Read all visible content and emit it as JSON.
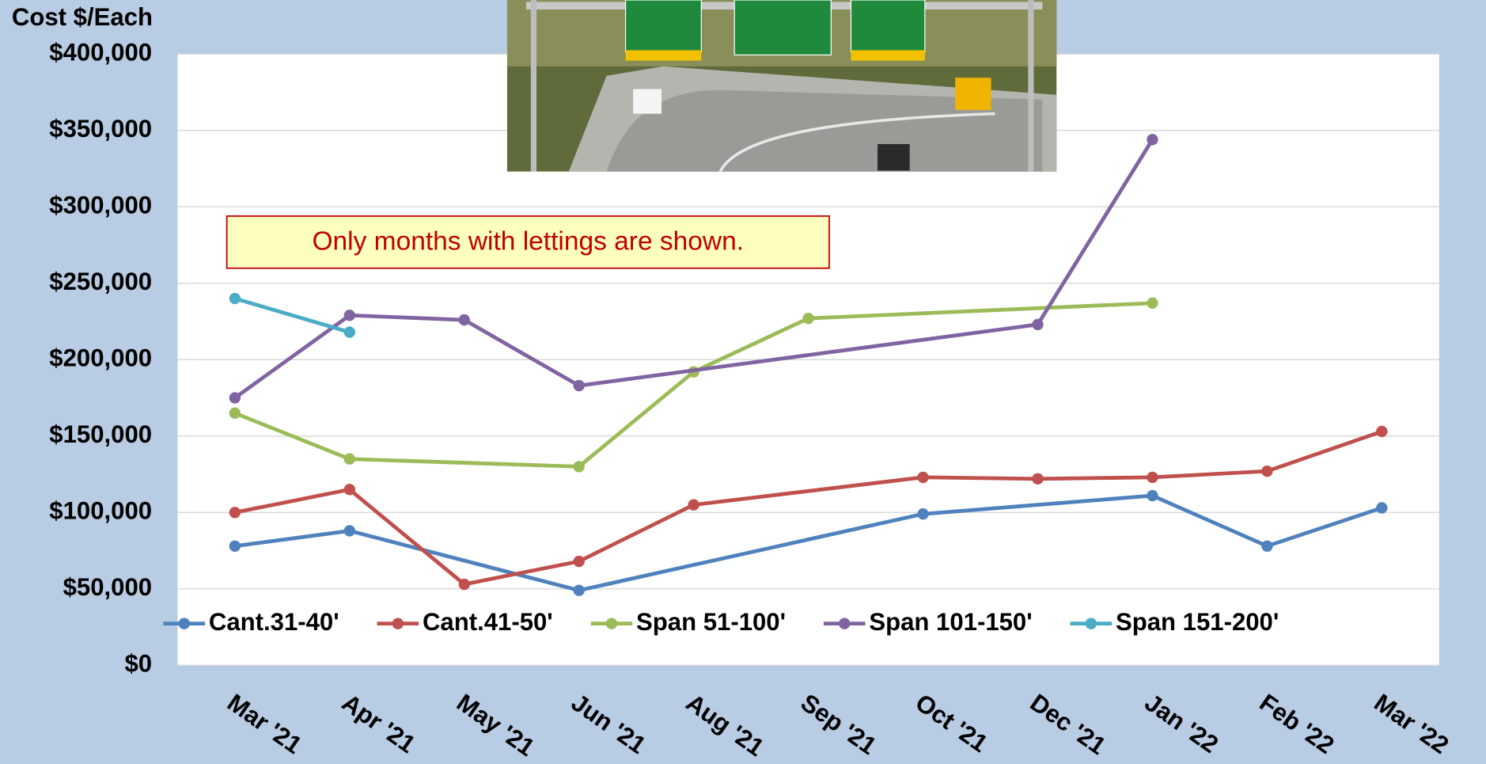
{
  "chart_data": {
    "type": "line",
    "y_axis_title": "Cost $/Each",
    "annotation": "Only months with lettings are shown.",
    "categories": [
      "Mar '21",
      "Apr '21",
      "May '21",
      "Jun '21",
      "Aug '21",
      "Sep '21",
      "Oct '21",
      "Dec '21",
      "Jan '22",
      "Feb '22",
      "Mar '22"
    ],
    "ylim": [
      0,
      400000
    ],
    "yticks": [
      {
        "value": 0,
        "label": "$0"
      },
      {
        "value": 50000,
        "label": "$50,000"
      },
      {
        "value": 100000,
        "label": "$100,000"
      },
      {
        "value": 150000,
        "label": "$150,000"
      },
      {
        "value": 200000,
        "label": "$200,000"
      },
      {
        "value": 250000,
        "label": "$250,000"
      },
      {
        "value": 300000,
        "label": "$300,000"
      },
      {
        "value": 350000,
        "label": "$350,000"
      },
      {
        "value": 400000,
        "label": "$400,000"
      }
    ],
    "grid": true,
    "span_gaps": true,
    "legend": "bottom",
    "series": [
      {
        "name": "Cant.31-40'",
        "color": "#4f81bd",
        "values": [
          78000,
          88000,
          null,
          49000,
          null,
          null,
          99000,
          null,
          111000,
          78000,
          103000
        ]
      },
      {
        "name": "Cant.41-50'",
        "color": "#c0504d",
        "values": [
          100000,
          115000,
          53000,
          68000,
          105000,
          null,
          123000,
          122000,
          123000,
          127000,
          153000
        ]
      },
      {
        "name": "Span 51-100'",
        "color": "#9bbb59",
        "values": [
          165000,
          135000,
          null,
          130000,
          192000,
          227000,
          null,
          null,
          237000,
          null,
          null
        ]
      },
      {
        "name": "Span 101-150'",
        "color": "#8064a2",
        "values": [
          175000,
          229000,
          226000,
          183000,
          null,
          null,
          null,
          223000,
          344000,
          null,
          null
        ]
      },
      {
        "name": "Span 151-200'",
        "color": "#4bacc6",
        "values": [
          240000,
          218000,
          null,
          null,
          null,
          null,
          null,
          null,
          null,
          null,
          null
        ]
      }
    ]
  }
}
